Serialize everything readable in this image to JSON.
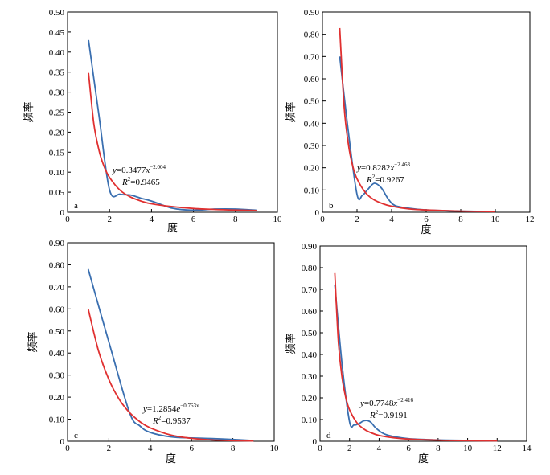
{
  "chart_data": [
    {
      "panel": "a",
      "type": "line",
      "xlabel": "度",
      "ylabel": "频率",
      "xlim": [
        0,
        10
      ],
      "ylim": [
        0,
        0.5
      ],
      "xticks": [
        "0",
        "2",
        "4",
        "6",
        "8",
        "10"
      ],
      "yticks": [
        "0",
        "0.05",
        "0.10",
        "0.15",
        "0.20",
        "0.25",
        "0.30",
        "0.35",
        "0.40",
        "0.45",
        "0.50"
      ],
      "equation": {
        "lhs": "y",
        "coef": "=0.3477",
        "var": "x",
        "exp": "−2.004",
        "r2_label": "R",
        "r2_value": "=0.9465"
      },
      "series": [
        {
          "color": "#3a6fb0",
          "x": [
            1.0,
            1.5,
            2.0,
            2.5,
            3.0,
            3.5,
            4.0,
            5.0,
            6.0,
            7.0,
            8.0,
            9.0
          ],
          "y": [
            0.43,
            0.24,
            0.056,
            0.045,
            0.043,
            0.035,
            0.028,
            0.01,
            0.005,
            0.008,
            0.008,
            0.005
          ]
        },
        {
          "color": "#e03030",
          "x": [
            1.0,
            1.25,
            1.5,
            1.75,
            2.0,
            2.5,
            3.0,
            3.5,
            4.0,
            5.0,
            6.0,
            7.0,
            8.0,
            9.0
          ],
          "y": [
            0.348,
            0.222,
            0.154,
            0.113,
            0.087,
            0.055,
            0.038,
            0.028,
            0.021,
            0.014,
            0.0095,
            0.007,
            0.0054,
            0.0043
          ]
        }
      ]
    },
    {
      "panel": "b",
      "type": "line",
      "xlabel": "度",
      "ylabel": "频率",
      "xlim": [
        0,
        12
      ],
      "ylim": [
        0,
        0.9
      ],
      "xticks": [
        "0",
        "2",
        "4",
        "6",
        "8",
        "10",
        "12"
      ],
      "yticks": [
        "0",
        "0.10",
        "0.20",
        "0.30",
        "0.40",
        "0.50",
        "0.60",
        "0.70",
        "0.80",
        "0.90"
      ],
      "equation": {
        "lhs": "y",
        "coef": "=0.8282",
        "var": "x",
        "exp": "−2.463",
        "r2_label": "R",
        "r2_value": "=0.9267"
      },
      "series": [
        {
          "color": "#3a6fb0",
          "x": [
            1.0,
            1.5,
            2.0,
            2.3,
            2.6,
            3.0,
            3.4,
            3.8,
            4.2,
            5.0,
            6.0,
            8.0,
            10.0
          ],
          "y": [
            0.7,
            0.36,
            0.08,
            0.075,
            0.1,
            0.13,
            0.11,
            0.06,
            0.03,
            0.018,
            0.01,
            0.005,
            0.004
          ]
        },
        {
          "color": "#e03030",
          "x": [
            1.0,
            1.25,
            1.5,
            1.75,
            2.0,
            2.5,
            3.0,
            3.5,
            4.0,
            5.0,
            6.0,
            8.0,
            10.0
          ],
          "y": [
            0.828,
            0.478,
            0.305,
            0.208,
            0.15,
            0.087,
            0.055,
            0.038,
            0.027,
            0.015,
            0.01,
            0.005,
            0.003
          ]
        }
      ]
    },
    {
      "panel": "c",
      "type": "line",
      "xlabel": "度",
      "ylabel": "频率",
      "xlim": [
        0,
        10
      ],
      "ylim": [
        0,
        0.9
      ],
      "xticks": [
        "0",
        "2",
        "4",
        "6",
        "8",
        "10"
      ],
      "yticks": [
        "0",
        "0.10",
        "0.20",
        "0.30",
        "0.40",
        "0.50",
        "0.60",
        "0.70",
        "0.80",
        "0.90"
      ],
      "equation": {
        "lhs": "y",
        "coef": "=1.2854",
        "var": "e",
        "exp": "−0.763x",
        "r2_label": "R",
        "r2_value": "=0.9537"
      },
      "series": [
        {
          "color": "#3a6fb0",
          "x": [
            1.0,
            2.0,
            3.0,
            3.5,
            4.0,
            5.0,
            6.0,
            7.0,
            8.0,
            9.0
          ],
          "y": [
            0.78,
            0.45,
            0.13,
            0.07,
            0.04,
            0.02,
            0.015,
            0.012,
            0.008,
            0.003
          ]
        },
        {
          "color": "#e03030",
          "x": [
            1.0,
            1.5,
            2.0,
            2.5,
            3.0,
            3.5,
            4.0,
            5.0,
            6.0,
            7.0,
            8.0,
            9.0
          ],
          "y": [
            0.6,
            0.41,
            0.28,
            0.19,
            0.13,
            0.089,
            0.061,
            0.028,
            0.013,
            0.006,
            0.003,
            0.0013
          ]
        }
      ]
    },
    {
      "panel": "d",
      "type": "line",
      "xlabel": "度",
      "ylabel": "频率",
      "xlim": [
        0,
        14
      ],
      "ylim": [
        0,
        0.9
      ],
      "xticks": [
        "0",
        "2",
        "4",
        "6",
        "8",
        "10",
        "12",
        "14"
      ],
      "yticks": [
        "0",
        "0.10",
        "0.20",
        "0.30",
        "0.40",
        "0.50",
        "0.60",
        "0.70",
        "0.80",
        "0.90"
      ],
      "equation": {
        "lhs": "y",
        "coef": "=0.7748",
        "var": "x",
        "exp": "−2.416",
        "r2_label": "R",
        "r2_value": "=0.9191"
      },
      "series": [
        {
          "color": "#3a6fb0",
          "x": [
            1.0,
            1.5,
            2.0,
            2.3,
            2.6,
            3.0,
            3.4,
            3.8,
            4.5,
            6.0,
            8.0,
            10.0,
            12.0
          ],
          "y": [
            0.72,
            0.35,
            0.09,
            0.075,
            0.08,
            0.095,
            0.09,
            0.06,
            0.03,
            0.012,
            0.006,
            0.004,
            0.003
          ]
        },
        {
          "color": "#e03030",
          "x": [
            1.0,
            1.25,
            1.5,
            1.75,
            2.0,
            2.5,
            3.0,
            3.5,
            4.0,
            5.0,
            6.0,
            8.0,
            10.0,
            12.0
          ],
          "y": [
            0.775,
            0.453,
            0.291,
            0.2,
            0.145,
            0.085,
            0.055,
            0.038,
            0.027,
            0.016,
            0.01,
            0.005,
            0.003,
            0.002
          ]
        }
      ]
    }
  ]
}
